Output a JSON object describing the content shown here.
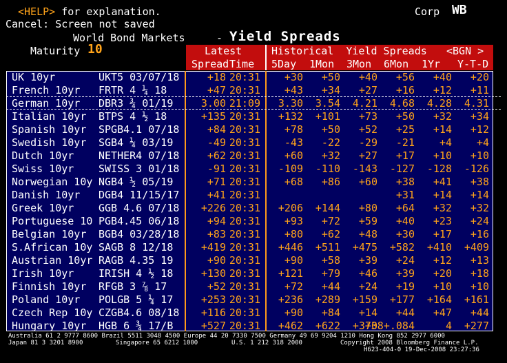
{
  "top": {
    "help_key": "<HELP>",
    "help_text": " for explanation.",
    "cancel_line": "Cancel: Screen not saved",
    "market_label": "Corp",
    "ticker": "WB"
  },
  "title": {
    "subtitle": "World Bond Markets",
    "dash": "-",
    "main": "Yield Spreads",
    "maturity_label": "Maturity",
    "maturity_value": "10"
  },
  "columns": {
    "latest": "Latest",
    "spread": "Spread",
    "time": "Time",
    "historical": "Historical  Yield Spreads",
    "bgn": "<BGN >",
    "d5": "5Day",
    "m1": "1Mon",
    "m3": "3Mon",
    "m6": "6Mon",
    "y1": "1Yr",
    "ytd": "Y-T-D"
  },
  "rows": [
    {
      "name": "UK 10yr",
      "ticker": "UKT5 03/07/18",
      "spread": "+18",
      "time": "20:31",
      "d5": "+30",
      "m1": "+50",
      "m3": "+40",
      "m6": "+56",
      "y1": "+40",
      "ytd": "+20"
    },
    {
      "name": "French 10yr",
      "ticker": "FRTR 4 ¼ 18",
      "spread": "+47",
      "time": "20:31",
      "d5": "+43",
      "m1": "+34",
      "m3": "+27",
      "m6": "+16",
      "y1": "+12",
      "ytd": "+11"
    },
    {
      "name": "German 10yr",
      "ticker": "DBR3 ¾ 01/19",
      "spread": "3.00",
      "time": "21:09",
      "d5": "3.30",
      "m1": "3.54",
      "m3": "4.21",
      "m6": "4.68",
      "y1": "4.28",
      "ytd": "4.31"
    },
    {
      "name": "Italian 10yr",
      "ticker": "BTPS 4 ½ 18",
      "spread": "+135",
      "time": "20:31",
      "d5": "+132",
      "m1": "+101",
      "m3": "+73",
      "m6": "+50",
      "y1": "+32",
      "ytd": "+34"
    },
    {
      "name": "Spanish 10yr",
      "ticker": "SPGB4.1 07/18",
      "spread": "+84",
      "time": "20:31",
      "d5": "+78",
      "m1": "+50",
      "m3": "+52",
      "m6": "+25",
      "y1": "+14",
      "ytd": "+12"
    },
    {
      "name": "Swedish 10yr",
      "ticker": "SGB4 ¼ 03/19",
      "spread": "-49",
      "time": "20:31",
      "d5": "-43",
      "m1": "-22",
      "m3": "-29",
      "m6": "-21",
      "y1": "+4",
      "ytd": "+4"
    },
    {
      "name": "Dutch 10yr",
      "ticker": "NETHER4 07/18",
      "spread": "+62",
      "time": "20:31",
      "d5": "+60",
      "m1": "+32",
      "m3": "+27",
      "m6": "+17",
      "y1": "+10",
      "ytd": "+10"
    },
    {
      "name": "Swiss 10yr",
      "ticker": "SWISS 3 01/18",
      "spread": "-91",
      "time": "20:31",
      "d5": "-109",
      "m1": "-110",
      "m3": "-143",
      "m6": "-127",
      "y1": "-128",
      "ytd": "-126"
    },
    {
      "name": "Norwegian 10y",
      "ticker": "NGB4 ½ 05/19",
      "spread": "+71",
      "time": "20:31",
      "d5": "+68",
      "m1": "+86",
      "m3": "+60",
      "m6": "+38",
      "y1": "+41",
      "ytd": "+38"
    },
    {
      "name": "Danish 10yr",
      "ticker": "DGB4 11/15/17",
      "spread": "+41",
      "time": "20:31",
      "d5": "",
      "m1": "",
      "m3": "",
      "m6": "+31",
      "y1": "+14",
      "ytd": "+14"
    },
    {
      "name": "Greek 10yr",
      "ticker": "GGB 4.6 07/18",
      "spread": "+226",
      "time": "20:31",
      "d5": "+206",
      "m1": "+144",
      "m3": "+80",
      "m6": "+64",
      "y1": "+32",
      "ytd": "+32"
    },
    {
      "name": "Portuguese 10",
      "ticker": "PGB4.45 06/18",
      "spread": "+94",
      "time": "20:31",
      "d5": "+93",
      "m1": "+72",
      "m3": "+59",
      "m6": "+40",
      "y1": "+23",
      "ytd": "+24"
    },
    {
      "name": "Belgian 10yr",
      "ticker": "BGB4 03/28/18",
      "spread": "+83",
      "time": "20:31",
      "d5": "+80",
      "m1": "+62",
      "m3": "+48",
      "m6": "+30",
      "y1": "+17",
      "ytd": "+16"
    },
    {
      "name": "S.African 10y",
      "ticker": "SAGB 8 12/18",
      "spread": "+419",
      "time": "20:31",
      "d5": "+446",
      "m1": "+511",
      "m3": "+475",
      "m6": "+582",
      "y1": "+410",
      "ytd": "+409"
    },
    {
      "name": "Austrian 10yr",
      "ticker": "RAGB 4.35 19",
      "spread": "+90",
      "time": "20:31",
      "d5": "+90",
      "m1": "+58",
      "m3": "+39",
      "m6": "+24",
      "y1": "+12",
      "ytd": "+13"
    },
    {
      "name": "Irish 10yr",
      "ticker": "IRISH 4 ½ 18",
      "spread": "+130",
      "time": "20:31",
      "d5": "+121",
      "m1": "+79",
      "m3": "+46",
      "m6": "+39",
      "y1": "+20",
      "ytd": "+18"
    },
    {
      "name": "Finnish 10yr",
      "ticker": "RFGB 3 ⅞ 17",
      "spread": "+52",
      "time": "20:31",
      "d5": "+72",
      "m1": "+44",
      "m3": "+24",
      "m6": "+19",
      "y1": "+10",
      "ytd": "+10"
    },
    {
      "name": "Poland 10yr",
      "ticker": "POLGB 5 ¼ 17",
      "spread": "+253",
      "time": "20:31",
      "d5": "+236",
      "m1": "+289",
      "m3": "+159",
      "m6": "+177",
      "y1": "+164",
      "ytd": "+161"
    },
    {
      "name": "Czech Rep 10y",
      "ticker": "CZGB4.6 08/18",
      "spread": "+116",
      "time": "20:31",
      "d5": "+90",
      "m1": "+84",
      "m3": "+14",
      "m6": "+44",
      "y1": "+47",
      "ytd": "+44"
    },
    {
      "name": "Hungary 10yr",
      "ticker": "HGB 6 ¾ 17/B",
      "spread": "+527",
      "time": "20:31",
      "d5": "+462",
      "m1": "+622",
      "m3": "+370",
      "m6": "+38+.084",
      "y1": "4",
      "ytd": "+277"
    }
  ],
  "footer": {
    "line1": "Australia 61 2 9777 8600 Brazil 5511 3048 4500 Europe 44 20 7330 7500 Germany 49 69 9204 1210 Hong Kong 852 2977 6000",
    "line2a": "Japan 81 3 3201 8900",
    "line2b": "Singapore 65 6212 1000",
    "line2c": "U.S. 1 212 318 2000",
    "line2d": "Copyright 2008 Bloomberg Finance L.P.",
    "line3": "H623-404-0 19-Dec-2008 23:27:36"
  }
}
